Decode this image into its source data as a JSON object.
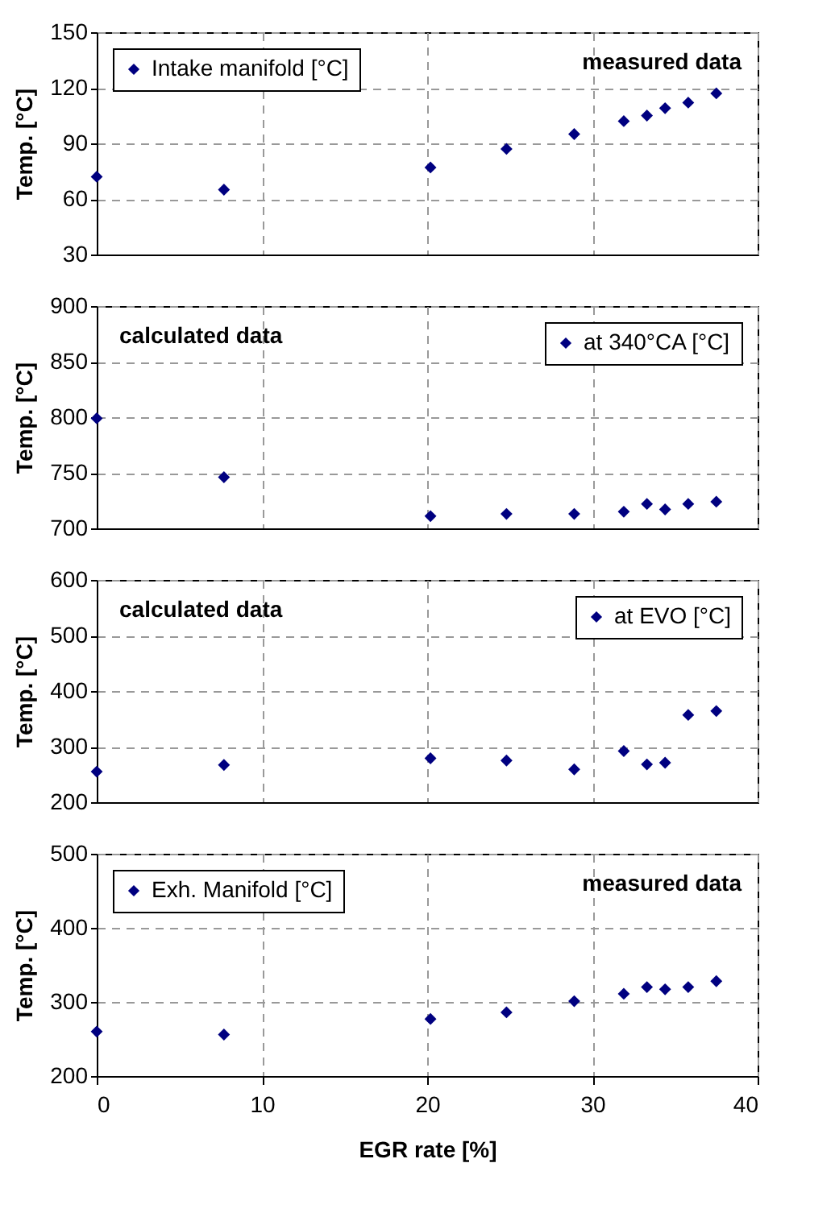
{
  "chart_data": [
    {
      "type": "scatter",
      "x": [
        0,
        7.7,
        20.2,
        24.8,
        28.9,
        31.9,
        33.3,
        34.4,
        35.8,
        37.5
      ],
      "series": [
        {
          "name": "Intake manifold [°C]",
          "color": "#000080",
          "values": [
            72,
            65,
            77,
            87,
            95,
            102,
            105,
            109,
            112,
            117
          ]
        }
      ],
      "xlim": [
        0,
        40
      ],
      "xticks": [
        0,
        10,
        20,
        30,
        40
      ],
      "ylim": [
        30,
        150
      ],
      "yticks": [
        30,
        60,
        90,
        120,
        150
      ],
      "ylabel": "Temp. [°C]",
      "annotations": [
        "measured data"
      ],
      "grid": true,
      "legend": "top left",
      "marker": "diamond",
      "tick_labels": "y"
    },
    {
      "type": "scatter",
      "x": [
        0,
        7.7,
        20.2,
        24.8,
        28.9,
        31.9,
        33.3,
        34.4,
        35.8,
        37.5
      ],
      "series": [
        {
          "name": "at 340°CA [°C]",
          "color": "#000080",
          "values": [
            799,
            746,
            711,
            713,
            713,
            715,
            722,
            717,
            722,
            724
          ]
        }
      ],
      "xlim": [
        0,
        40
      ],
      "xticks": [
        0,
        10,
        20,
        30,
        40
      ],
      "ylim": [
        700,
        900
      ],
      "yticks": [
        700,
        750,
        800,
        850,
        900
      ],
      "ylabel": "Temp. [°C]",
      "annotations": [
        "calculated data"
      ],
      "grid": true,
      "legend": "top right",
      "marker": "diamond",
      "tick_labels": "y"
    },
    {
      "type": "scatter",
      "x": [
        0,
        7.7,
        20.2,
        24.8,
        28.9,
        31.9,
        33.3,
        34.4,
        35.8,
        37.5
      ],
      "series": [
        {
          "name": "at EVO [°C]",
          "color": "#000080",
          "values": [
            255,
            267,
            279,
            275,
            259,
            292,
            268,
            271,
            357,
            364
          ]
        }
      ],
      "xlim": [
        0,
        40
      ],
      "xticks": [
        0,
        10,
        20,
        30,
        40
      ],
      "ylim": [
        200,
        600
      ],
      "yticks": [
        200,
        300,
        400,
        500,
        600
      ],
      "ylabel": "Temp. [°C]",
      "annotations": [
        "calculated data"
      ],
      "grid": true,
      "legend": "top right",
      "marker": "diamond",
      "tick_labels": "y"
    },
    {
      "type": "scatter",
      "x": [
        0,
        7.7,
        20.2,
        24.8,
        28.9,
        31.9,
        33.3,
        34.4,
        35.8,
        37.5
      ],
      "series": [
        {
          "name": "Exh. Manifold [°C]",
          "color": "#000080",
          "values": [
            260,
            256,
            277,
            286,
            301,
            311,
            320,
            317,
            320,
            328
          ]
        }
      ],
      "xlim": [
        0,
        40
      ],
      "xticks": [
        0,
        10,
        20,
        30,
        40
      ],
      "ylim": [
        200,
        500
      ],
      "yticks": [
        200,
        300,
        400,
        500
      ],
      "xlabel": "EGR rate [%]",
      "ylabel": "Temp. [°C]",
      "annotations": [
        "measured data"
      ],
      "grid": true,
      "legend": "top left",
      "marker": "diamond"
    }
  ]
}
